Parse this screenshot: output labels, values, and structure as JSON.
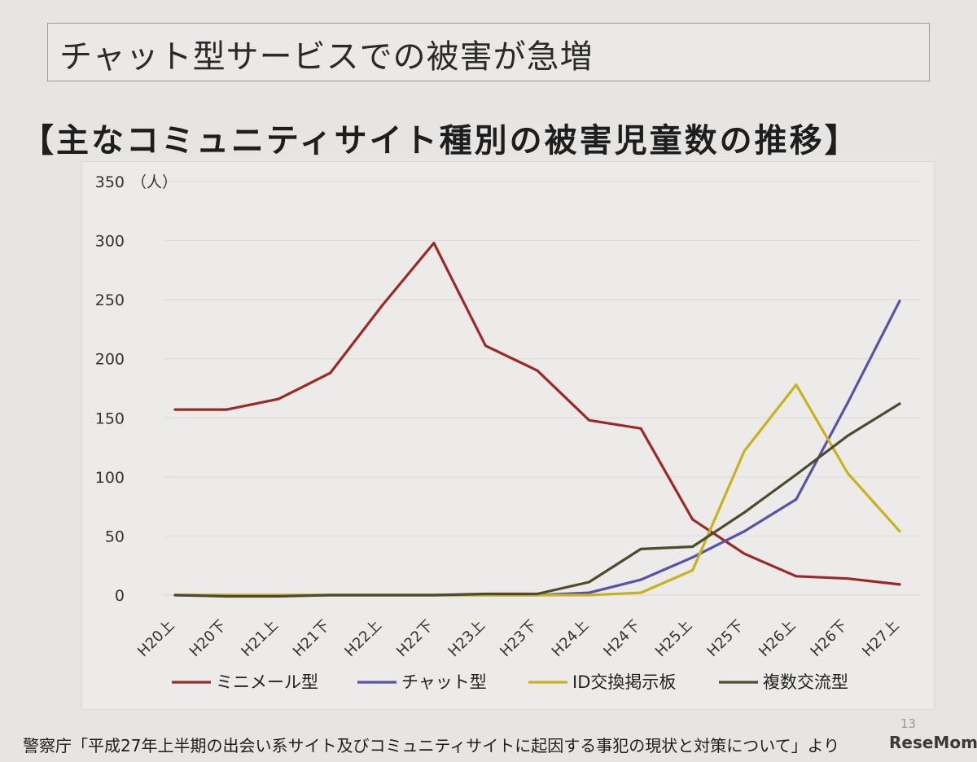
{
  "slide": {
    "title": "チャット型サービスでの被害が急増",
    "heading": "【主なコミュニティサイト種別の被害児童数の推移】",
    "page_number": "13",
    "source": "警察庁「平成27年上半期の出会い系サイト及びコミュニティサイトに起因する事犯の現状と対策について」より",
    "logo": "ReseMom"
  },
  "chart_data": {
    "type": "line",
    "title": "【主なコミュニティサイト種別の被害児童数の推移】",
    "xlabel": "",
    "ylabel": "（人）",
    "ylim": [
      0,
      350
    ],
    "yticks": [
      0,
      50,
      100,
      150,
      200,
      250,
      300,
      350
    ],
    "grid": true,
    "legend": "bottom",
    "categories": [
      "H20上",
      "H20下",
      "H21上",
      "H21下",
      "H22上",
      "H22下",
      "H23上",
      "H23下",
      "H24上",
      "H24下",
      "H25上",
      "H25下",
      "H26上",
      "H26下",
      "H27上"
    ],
    "series": [
      {
        "name": "ミニメール型",
        "color": "#9b2a26",
        "values": [
          157,
          157,
          166,
          188,
          245,
          298,
          211,
          190,
          148,
          141,
          64,
          35,
          16,
          14,
          9
        ]
      },
      {
        "name": "チャット型",
        "color": "#5a52a8",
        "values": [
          0,
          0,
          0,
          0,
          0,
          0,
          0,
          0,
          2,
          13,
          32,
          54,
          81,
          163,
          249
        ]
      },
      {
        "name": "ID交換掲示板",
        "color": "#c8b21e",
        "values": [
          0,
          0,
          0,
          0,
          0,
          0,
          0,
          0,
          0,
          2,
          21,
          122,
          178,
          103,
          54
        ]
      },
      {
        "name": "複数交流型",
        "color": "#4e4b2a",
        "values": [
          0,
          -1,
          -1,
          0,
          0,
          0,
          1,
          1,
          11,
          39,
          41,
          70,
          102,
          135,
          162
        ]
      }
    ]
  }
}
